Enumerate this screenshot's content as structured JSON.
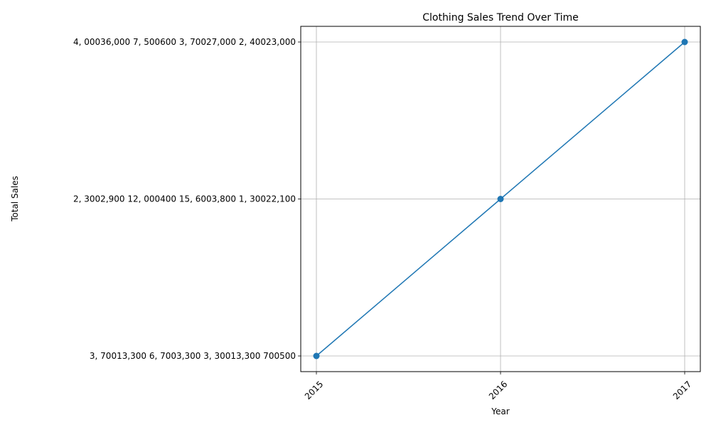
{
  "chart_data": {
    "type": "line",
    "title": "Clothing Sales Trend Over Time",
    "xlabel": "Year",
    "ylabel": "Total Sales",
    "categories": [
      "2015",
      "2016",
      "2017"
    ],
    "y_categories": [
      "3, 70013,300  6, 7003,300  3, 30013,300  700500",
      "2, 3002,900  12, 000400  15, 6003,800  1, 30022,100",
      "4, 00036,000  7, 500600  3, 70027,000  2, 40023,000"
    ],
    "series": [
      {
        "values": [
          0,
          1,
          2
        ],
        "color": "#1f77b4",
        "marker": "circle"
      }
    ],
    "grid": true,
    "legend": "none"
  }
}
